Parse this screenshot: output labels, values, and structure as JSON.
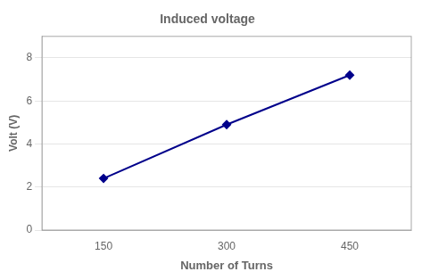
{
  "chart_data": {
    "type": "line",
    "title": "Induced voltage",
    "xlabel": "Number of Turns",
    "ylabel": "Volt (V)",
    "x": [
      150,
      300,
      450
    ],
    "values": [
      2.4,
      4.9,
      7.2
    ],
    "xlim": [
      75,
      525
    ],
    "xticks": [
      150,
      300,
      450
    ],
    "ylim": [
      0,
      9
    ],
    "yticks": [
      0,
      2,
      4,
      6,
      8
    ],
    "color": "#00008B",
    "marker": "diamond",
    "grid": "y"
  }
}
